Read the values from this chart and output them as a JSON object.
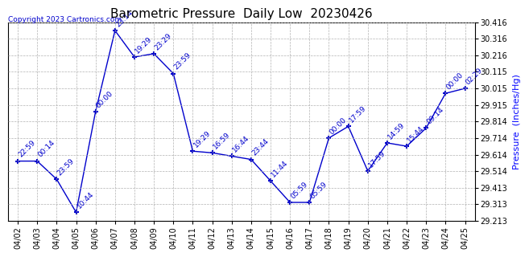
{
  "title": "Barometric Pressure  Daily Low  20230426",
  "ylabel": "Pressure  (Inches/Hg)",
  "copyright": "Copyright 2023 Cartronics.com",
  "dates": [
    "04/02",
    "04/03",
    "04/04",
    "04/05",
    "04/06",
    "04/07",
    "04/08",
    "04/09",
    "04/10",
    "04/11",
    "04/12",
    "04/13",
    "04/14",
    "04/15",
    "04/16",
    "04/17",
    "04/18",
    "04/19",
    "04/20",
    "04/21",
    "04/22",
    "04/23",
    "04/24",
    "04/25"
  ],
  "values": [
    29.575,
    29.575,
    29.465,
    29.265,
    29.875,
    30.365,
    30.205,
    30.225,
    30.105,
    29.635,
    29.625,
    29.605,
    29.585,
    29.455,
    29.325,
    29.325,
    29.715,
    29.785,
    29.515,
    29.685,
    29.665,
    29.775,
    29.985,
    30.015
  ],
  "times": [
    "22:59",
    "00:14",
    "23:59",
    "10:44",
    "00:00",
    "23:14",
    "19:29",
    "23:29",
    "23:59",
    "19:29",
    "16:59",
    "16:44",
    "23:44",
    "11:44",
    "05:59",
    "05:59",
    "00:00",
    "17:59",
    "17:59",
    "14:59",
    "15:44",
    "09:14",
    "00:00",
    "02:29"
  ],
  "line_color": "#0000cc",
  "background_color": "#ffffff",
  "grid_color": "#aaaaaa",
  "ylabel_color": "#0000ff",
  "copyright_color": "#0000cc",
  "title_color": "#000000",
  "ylim_min": 29.213,
  "ylim_max": 30.416,
  "yticks": [
    29.213,
    29.313,
    29.413,
    29.514,
    29.614,
    29.714,
    29.814,
    29.915,
    30.015,
    30.115,
    30.216,
    30.316,
    30.416
  ],
  "label_fontsize": 6.5,
  "title_fontsize": 11,
  "tick_fontsize": 7,
  "ylabel_fontsize": 8
}
